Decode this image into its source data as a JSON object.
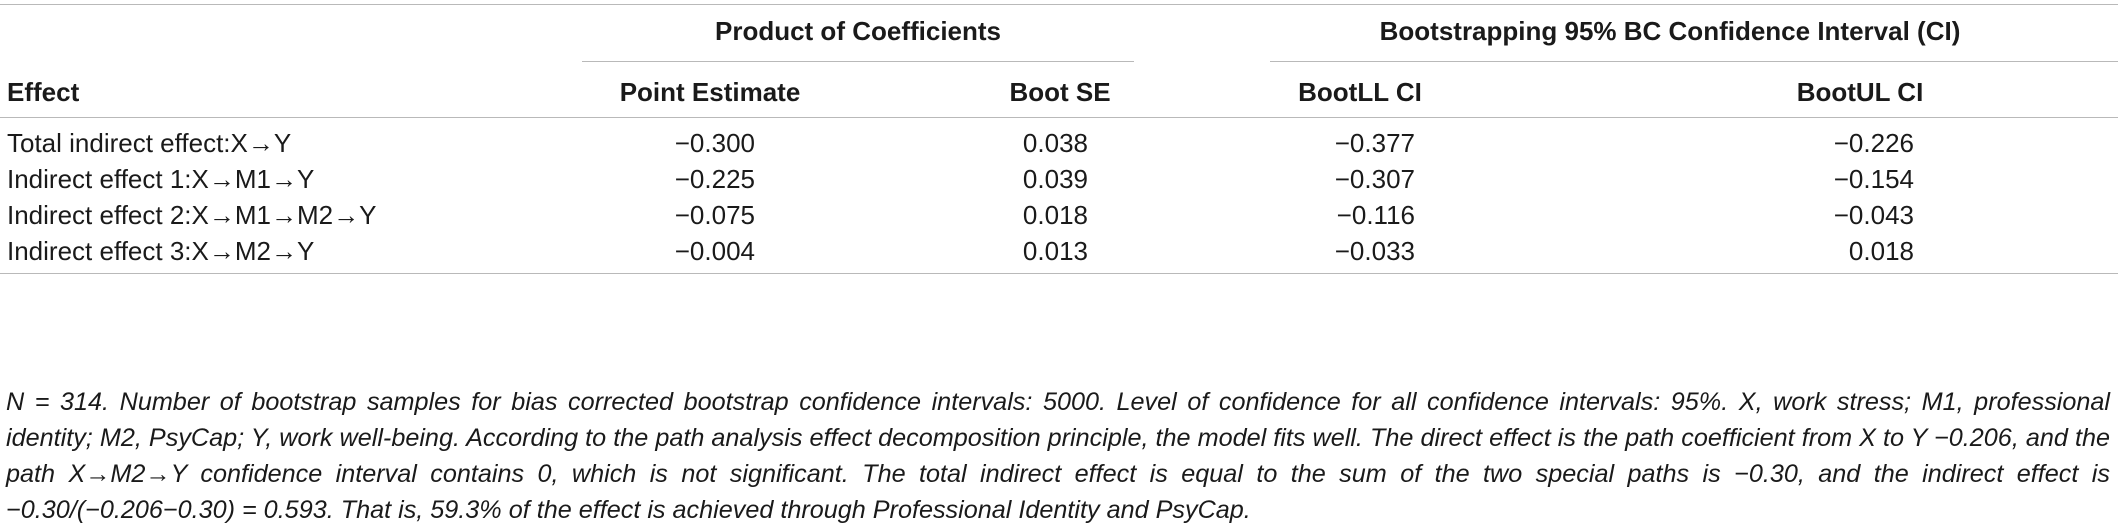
{
  "table": {
    "group_headers": {
      "product": "Product of Coefficients",
      "bootstrap": "Bootstrapping 95% BC Confidence Interval (CI)"
    },
    "columns": [
      "Effect",
      "Point Estimate",
      "Boot SE",
      "BootLL CI",
      "BootUL CI"
    ],
    "rows": [
      {
        "effect": "Total indirect effect:X→Y",
        "point_estimate": "−0.300",
        "boot_se": "0.038",
        "bootll": "−0.377",
        "bootul": "−0.226"
      },
      {
        "effect": "Indirect effect 1:X→M1→Y",
        "point_estimate": "−0.225",
        "boot_se": "0.039",
        "bootll": "−0.307",
        "bootul": "−0.154"
      },
      {
        "effect": "Indirect effect 2:X→M1→M2→Y",
        "point_estimate": "−0.075",
        "boot_se": "0.018",
        "bootll": "−0.116",
        "bootul": "−0.043"
      },
      {
        "effect": "Indirect effect 3:X→M2→Y",
        "point_estimate": "−0.004",
        "boot_se": "0.013",
        "bootll": "−0.033",
        "bootul": "0.018"
      }
    ]
  },
  "footnote": "N = 314. Number of bootstrap samples for bias corrected bootstrap confidence intervals: 5000. Level of confidence for all confidence intervals: 95%. X, work stress; M1, professional identity; M2, PsyCap; Y, work well-being. According to the path analysis effect decomposition principle, the model fits well. The direct effect is the path coefficient from X to Y −0.206, and the path X→M2→Y confidence interval contains 0, which is not significant. The total indirect effect is equal to the sum of the two special paths is −0.30, and the indirect effect is −0.30/(−0.206−0.30) = 0.593. That is, 59.3% of the effect is achieved through Professional Identity and PsyCap."
}
